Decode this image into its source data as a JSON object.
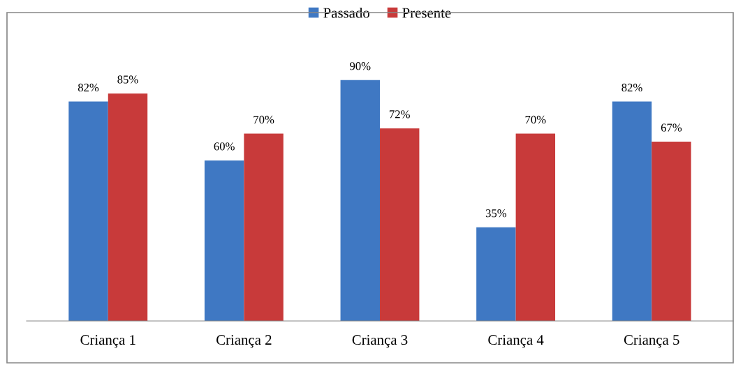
{
  "chart_data": {
    "type": "bar",
    "categories": [
      "Criança 1",
      "Criança 2",
      "Criança 3",
      "Criança 4",
      "Criança 5"
    ],
    "series": [
      {
        "name": "Passado",
        "color": "#3f78c3",
        "values": [
          82,
          60,
          90,
          35,
          82
        ],
        "value_labels": [
          "82%",
          "60%",
          "90%",
          "35%",
          "82%"
        ]
      },
      {
        "name": "Presente",
        "color": "#c83a3a",
        "values": [
          85,
          70,
          72,
          70,
          67
        ],
        "value_labels": [
          "85%",
          "70%",
          "72%",
          "70%",
          "67%"
        ]
      }
    ],
    "legend": "top",
    "grid": false
  }
}
